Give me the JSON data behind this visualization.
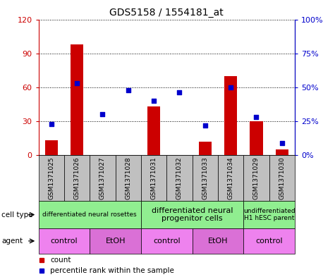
{
  "title": "GDS5158 / 1554181_at",
  "samples": [
    "GSM1371025",
    "GSM1371026",
    "GSM1371027",
    "GSM1371028",
    "GSM1371031",
    "GSM1371032",
    "GSM1371033",
    "GSM1371034",
    "GSM1371029",
    "GSM1371030"
  ],
  "counts": [
    13,
    98,
    0,
    0,
    43,
    0,
    12,
    70,
    30,
    5
  ],
  "percentiles": [
    23,
    53,
    30,
    48,
    40,
    46,
    22,
    50,
    28,
    9
  ],
  "ylim_left": [
    0,
    120
  ],
  "ylim_right": [
    0,
    100
  ],
  "yticks_left": [
    0,
    30,
    60,
    90,
    120
  ],
  "yticks_right": [
    0,
    25,
    50,
    75,
    100
  ],
  "yticklabels_left": [
    "0",
    "30",
    "60",
    "90",
    "120"
  ],
  "yticklabels_right": [
    "0%",
    "25%",
    "50%",
    "75%",
    "100%"
  ],
  "bar_color": "#CC0000",
  "dot_color": "#0000CC",
  "cell_type_groups": [
    {
      "label": "differentiated neural rosettes",
      "start": 0,
      "end": 3,
      "fontsize": 6.5
    },
    {
      "label": "differentiated neural\nprogenitor cells",
      "start": 4,
      "end": 7,
      "fontsize": 8
    },
    {
      "label": "undifferentiated\nH1 hESC parent",
      "start": 8,
      "end": 9,
      "fontsize": 6.5
    }
  ],
  "agent_groups": [
    {
      "label": "control",
      "start": 0,
      "end": 1,
      "bg": "#EE82EE"
    },
    {
      "label": "EtOH",
      "start": 2,
      "end": 3,
      "bg": "#DA70D6"
    },
    {
      "label": "control",
      "start": 4,
      "end": 5,
      "bg": "#EE82EE"
    },
    {
      "label": "EtOH",
      "start": 6,
      "end": 7,
      "bg": "#DA70D6"
    },
    {
      "label": "control",
      "start": 8,
      "end": 9,
      "bg": "#EE82EE"
    }
  ],
  "cell_type_bg": "#90EE90",
  "sample_bg": "#C0C0C0",
  "legend_items": [
    {
      "label": "count",
      "color": "#CC0000",
      "marker": "s"
    },
    {
      "label": "percentile rank within the sample",
      "color": "#0000CC",
      "marker": "s"
    }
  ],
  "left_labels": [
    "cell type",
    "agent"
  ],
  "arrow_color": "#666666"
}
